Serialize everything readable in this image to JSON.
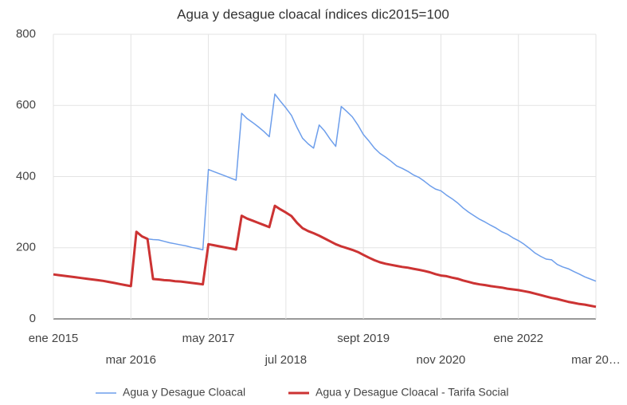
{
  "chart_data": {
    "type": "line",
    "title": "Agua y desague cloacal índices dic2015=100",
    "categories": [
      "ene 2015",
      null,
      null,
      null,
      null,
      null,
      null,
      null,
      null,
      null,
      null,
      null,
      null,
      null,
      "mar 2016",
      null,
      null,
      null,
      null,
      null,
      null,
      null,
      null,
      null,
      null,
      null,
      null,
      null,
      "may 2017",
      null,
      null,
      null,
      null,
      null,
      null,
      null,
      null,
      null,
      null,
      null,
      null,
      null,
      "jul 2018",
      null,
      null,
      null,
      null,
      null,
      null,
      null,
      null,
      null,
      null,
      null,
      null,
      null,
      "sept 2019",
      null,
      null,
      null,
      null,
      null,
      null,
      null,
      null,
      null,
      null,
      null,
      null,
      null,
      "nov 2020",
      null,
      null,
      null,
      null,
      null,
      null,
      null,
      null,
      null,
      null,
      null,
      null,
      null,
      "ene 2022",
      null,
      null,
      null,
      null,
      null,
      null,
      null,
      null,
      null,
      null,
      null,
      null,
      null,
      "mar 20…"
    ],
    "series": [
      {
        "name": "Agua y Desague Cloacal",
        "color": "#6d9eeb",
        "width": 1.5,
        "values": [
          125,
          123,
          121,
          119,
          117,
          115,
          113,
          111,
          109,
          107,
          104,
          101,
          98,
          95,
          92,
          245,
          232,
          225,
          223,
          222,
          218,
          214,
          211,
          208,
          205,
          201,
          198,
          194,
          420,
          414,
          408,
          402,
          396,
          390,
          578,
          563,
          552,
          540,
          527,
          512,
          632,
          612,
          593,
          572,
          538,
          508,
          492,
          480,
          545,
          528,
          505,
          485,
          597,
          583,
          568,
          545,
          518,
          500,
          480,
          465,
          455,
          443,
          430,
          423,
          415,
          405,
          398,
          387,
          375,
          365,
          360,
          348,
          338,
          326,
          312,
          300,
          290,
          280,
          272,
          263,
          255,
          245,
          238,
          228,
          220,
          210,
          198,
          185,
          176,
          168,
          166,
          153,
          146,
          141,
          133,
          126,
          118,
          112,
          106
        ]
      },
      {
        "name": "Agua y Desague Cloacal - Tarifa Social",
        "color": "#cc3333",
        "width": 3,
        "values": [
          125,
          123,
          121,
          119,
          117,
          115,
          113,
          111,
          109,
          107,
          104,
          101,
          98,
          95,
          92,
          245,
          232,
          225,
          112,
          111,
          109,
          108,
          106,
          105,
          103,
          101,
          99,
          97,
          210,
          207,
          204,
          201,
          198,
          195,
          290,
          282,
          276,
          270,
          264,
          258,
          318,
          308,
          299,
          289,
          270,
          255,
          247,
          241,
          234,
          226,
          218,
          210,
          204,
          199,
          194,
          188,
          180,
          172,
          165,
          159,
          155,
          152,
          149,
          146,
          144,
          141,
          138,
          135,
          131,
          126,
          122,
          120,
          116,
          113,
          108,
          104,
          100,
          97,
          95,
          92,
          90,
          88,
          85,
          83,
          81,
          78,
          75,
          71,
          67,
          63,
          59,
          56,
          52,
          48,
          45,
          42,
          40,
          37,
          34
        ]
      }
    ],
    "ylim": [
      0,
      800
    ],
    "yticks": [
      0,
      200,
      400,
      600,
      800
    ],
    "grid": true,
    "legend": "bottom"
  }
}
